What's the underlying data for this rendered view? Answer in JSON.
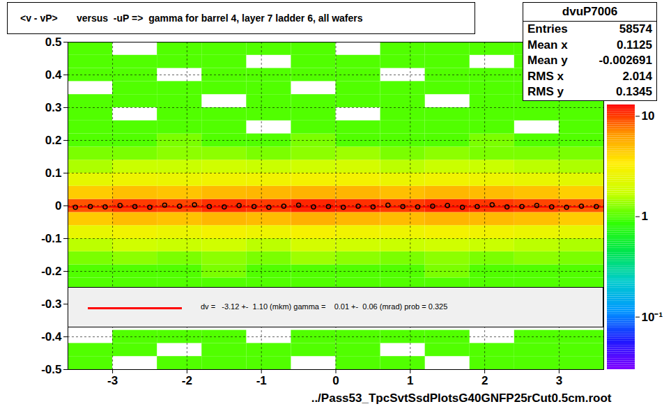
{
  "chart_data": {
    "type": "heatmap",
    "title": "<v - vP>       versus  -uP =>  gamma for barrel 4, layer 7 ladder 6, all wafers",
    "x_label": "../Pass53_TpcSvtSsdPlotsG40GNFP25rCut0.5cm.root",
    "xlim": [
      -3.6,
      3.6
    ],
    "ylim": [
      -0.5,
      0.5
    ],
    "xticks": [
      -3,
      -2,
      -1,
      0,
      1,
      2,
      3
    ],
    "yticks": [
      -0.5,
      -0.4,
      -0.3,
      -0.2,
      -0.1,
      0,
      0.1,
      0.2,
      0.3,
      0.4,
      0.5
    ],
    "grid": true,
    "cells": {
      "x_edges": [
        -3.6,
        -3.0,
        -2.4,
        -1.8,
        -1.2,
        -0.6,
        0,
        0.6,
        1.2,
        1.8,
        2.4,
        3.0,
        3.6
      ],
      "y_edges": [
        -0.5,
        -0.46,
        -0.42,
        -0.38,
        -0.34,
        -0.3,
        -0.26,
        -0.22,
        -0.18,
        -0.14,
        -0.1,
        -0.06,
        -0.02,
        0.02,
        0.06,
        0.1,
        0.14,
        0.18,
        0.22,
        0.26,
        0.3,
        0.34,
        0.38,
        0.42,
        0.46,
        0.5
      ],
      "values": [
        [
          1,
          0,
          1,
          1,
          1,
          0,
          1,
          1,
          0,
          1,
          1,
          1
        ],
        [
          1,
          1,
          0,
          1,
          1,
          1,
          1,
          0,
          1,
          1,
          1,
          1
        ],
        [
          0,
          1,
          1,
          1,
          0,
          1,
          1,
          1,
          1,
          0,
          1,
          1
        ],
        [
          null,
          null,
          null,
          null,
          null,
          null,
          null,
          null,
          null,
          null,
          null,
          null
        ],
        [
          null,
          null,
          null,
          null,
          null,
          null,
          null,
          null,
          null,
          null,
          null,
          null
        ],
        [
          null,
          null,
          null,
          null,
          null,
          null,
          null,
          null,
          null,
          null,
          null,
          null
        ],
        [
          1,
          1,
          1,
          1,
          1,
          1,
          1,
          1,
          1,
          1,
          1,
          1
        ],
        [
          1,
          1,
          1,
          1.2,
          1,
          1,
          1,
          1,
          1.2,
          1,
          1,
          1
        ],
        [
          1.2,
          1.3,
          1.2,
          1.3,
          1.2,
          1.4,
          1.3,
          1.2,
          1.3,
          1.2,
          1.3,
          1.2
        ],
        [
          1.6,
          1.8,
          1.7,
          1.8,
          1.6,
          1.9,
          1.8,
          1.7,
          1.8,
          1.7,
          1.6,
          1.5
        ],
        [
          2.5,
          2.8,
          2.6,
          2.9,
          2.7,
          3.0,
          2.8,
          2.7,
          2.9,
          2.8,
          2.6,
          2.4
        ],
        [
          4.5,
          5,
          4.8,
          5.2,
          5,
          5.5,
          5.2,
          5,
          5.3,
          5.1,
          4.9,
          4.4
        ],
        [
          9,
          10,
          9.5,
          10.5,
          10,
          11,
          10.5,
          10,
          10.8,
          10.2,
          9.6,
          8.8
        ],
        [
          4.4,
          4.9,
          4.7,
          5.1,
          5.2,
          5.4,
          5.3,
          4.9,
          5.2,
          5,
          4.8,
          4.3
        ],
        [
          2.4,
          2.7,
          2.6,
          2.8,
          2.8,
          2.9,
          2.9,
          2.6,
          2.8,
          2.7,
          2.5,
          2.3
        ],
        [
          1.5,
          1.7,
          1.7,
          1.8,
          1.7,
          1.8,
          1.9,
          1.6,
          1.7,
          1.7,
          1.6,
          1.5
        ],
        [
          1.2,
          1.2,
          1.3,
          1.3,
          1.2,
          1.3,
          1.4,
          1.2,
          1.3,
          1.2,
          1.2,
          1.2
        ],
        [
          1,
          1,
          1.2,
          1,
          1,
          1.2,
          1,
          1,
          1,
          1.2,
          1,
          1
        ],
        [
          1,
          1,
          1,
          1,
          0,
          1,
          1,
          1,
          1,
          1,
          0,
          1
        ],
        [
          1,
          0,
          1,
          1,
          1,
          1,
          0,
          1,
          1,
          1,
          1,
          1
        ],
        [
          1,
          1,
          1,
          0,
          1,
          1,
          1,
          1,
          0,
          1,
          1,
          1
        ],
        [
          0,
          1,
          1,
          1,
          1,
          0,
          1,
          1,
          1,
          1,
          1,
          0
        ],
        [
          1,
          1,
          0,
          1,
          1,
          1,
          1,
          0,
          1,
          1,
          1,
          1
        ],
        [
          1,
          1,
          1,
          1,
          0,
          1,
          1,
          1,
          1,
          0,
          1,
          1
        ],
        [
          1,
          0,
          1,
          1,
          1,
          1,
          0,
          1,
          1,
          1,
          1,
          1
        ]
      ]
    },
    "colorbar": {
      "range": [
        0.03,
        13
      ],
      "log": true,
      "ticks": [
        {
          "value": 0.1,
          "label": "10⁻¹"
        },
        1,
        10
      ]
    },
    "profile": {
      "marker": "circle",
      "color": "#000000",
      "x": [
        -3.5,
        -3.3,
        -3.1,
        -2.9,
        -2.7,
        -2.5,
        -2.3,
        -2.1,
        -1.9,
        -1.7,
        -1.5,
        -1.3,
        -1.1,
        -0.9,
        -0.7,
        -0.5,
        -0.3,
        -0.1,
        0.1,
        0.3,
        0.5,
        0.7,
        0.9,
        1.1,
        1.3,
        1.5,
        1.7,
        1.9,
        2.1,
        2.3,
        2.5,
        2.7,
        2.9,
        3.1,
        3.3,
        3.5
      ],
      "values": [
        -0.004,
        -0.002,
        -0.003,
        0.001,
        -0.002,
        -0.004,
        0.002,
        -0.001,
        0.003,
        -0.002,
        -0.003,
        0.001,
        -0.002,
        -0.004,
        -0.001,
        0.002,
        -0.003,
        -0.002,
        -0.004,
        -0.001,
        -0.003,
        0.002,
        -0.002,
        -0.003,
        -0.001,
        0.001,
        -0.004,
        -0.002,
        0.003,
        -0.003,
        -0.002,
        0.001,
        -0.003,
        -0.004,
        -0.001,
        -0.002
      ]
    },
    "fit": {
      "x": [
        -3.6,
        3.6
      ],
      "y": [
        -0.0031,
        -0.0031
      ],
      "color": "#ff0000"
    },
    "legend_text": "dv =   -3.12 +-  1.10 (mkm) gamma =    0.01 +-  0.06 (mrad) prob = 0.325",
    "stats": {
      "name": "dvuP7006",
      "rows": [
        {
          "label": "Entries",
          "value": 58574
        },
        {
          "label": "Mean x",
          "value": 0.1125
        },
        {
          "label": "Mean y",
          "value": -0.002691
        },
        {
          "label": "RMS x",
          "value": 2.014
        },
        {
          "label": "RMS y",
          "value": 0.1345
        }
      ]
    }
  }
}
